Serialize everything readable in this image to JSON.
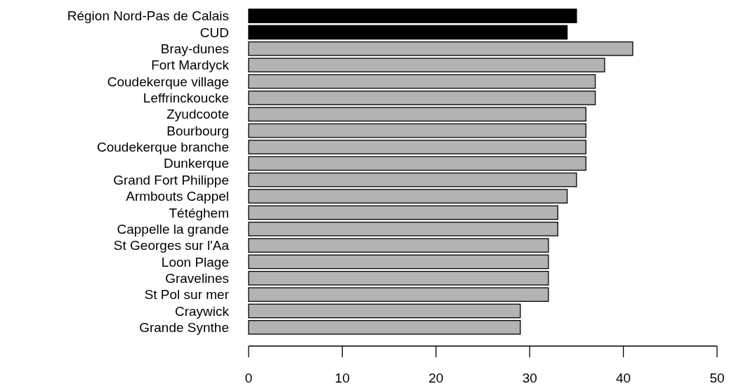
{
  "chart_data": {
    "type": "bar",
    "orientation": "horizontal",
    "categories": [
      "Région Nord-Pas de Calais",
      "CUD",
      "Bray-dunes",
      "Fort Mardyck",
      "Coudekerque village",
      "Leffrinckoucke",
      "Zyudcoote",
      "Bourbourg",
      "Coudekerque branche",
      "Dunkerque",
      "Grand Fort Philippe",
      "Armbouts Cappel",
      "Tétéghem",
      "Cappelle la grande",
      "St Georges sur l'Aa",
      "Loon Plage",
      "Gravelines",
      "St Pol sur mer",
      "Craywick",
      "Grande Synthe"
    ],
    "values": [
      35,
      34,
      41,
      38,
      37,
      37,
      36,
      36,
      36,
      36,
      35,
      34,
      33,
      33,
      32,
      32,
      32,
      32,
      29,
      29
    ],
    "colors": [
      "#000000",
      "#000000",
      "#b3b3b3",
      "#b3b3b3",
      "#b3b3b3",
      "#b3b3b3",
      "#b3b3b3",
      "#b3b3b3",
      "#b3b3b3",
      "#b3b3b3",
      "#b3b3b3",
      "#b3b3b3",
      "#b3b3b3",
      "#b3b3b3",
      "#b3b3b3",
      "#b3b3b3",
      "#b3b3b3",
      "#b3b3b3",
      "#b3b3b3",
      "#b3b3b3"
    ],
    "xlim": [
      0,
      50
    ],
    "xticks": [
      0,
      10,
      20,
      30,
      40,
      50
    ]
  }
}
